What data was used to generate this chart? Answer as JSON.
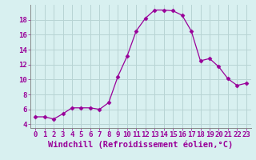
{
  "x": [
    0,
    1,
    2,
    3,
    4,
    5,
    6,
    7,
    8,
    9,
    10,
    11,
    12,
    13,
    14,
    15,
    16,
    17,
    18,
    19,
    20,
    21,
    22,
    23
  ],
  "y": [
    5.0,
    5.0,
    4.7,
    5.4,
    6.2,
    6.2,
    6.2,
    6.0,
    6.9,
    10.4,
    13.1,
    16.5,
    18.2,
    19.3,
    19.3,
    19.2,
    18.6,
    16.5,
    12.5,
    12.8,
    11.7,
    10.1,
    9.2,
    9.5
  ],
  "line_color": "#990099",
  "marker": "D",
  "marker_size": 2.5,
  "bg_color": "#d8f0f0",
  "grid_color": "#b8d4d4",
  "xlabel": "Windchill (Refroidissement éolien,°C)",
  "xlim_min": -0.5,
  "xlim_max": 23.5,
  "ylim_min": 3.5,
  "ylim_max": 20.0,
  "yticks": [
    4,
    6,
    8,
    10,
    12,
    14,
    16,
    18
  ],
  "xticks": [
    0,
    1,
    2,
    3,
    4,
    5,
    6,
    7,
    8,
    9,
    10,
    11,
    12,
    13,
    14,
    15,
    16,
    17,
    18,
    19,
    20,
    21,
    22,
    23
  ],
  "tick_color": "#990099",
  "label_color": "#990099",
  "tick_fontsize": 6.5,
  "xlabel_fontsize": 7.5,
  "spine_color": "#888888"
}
